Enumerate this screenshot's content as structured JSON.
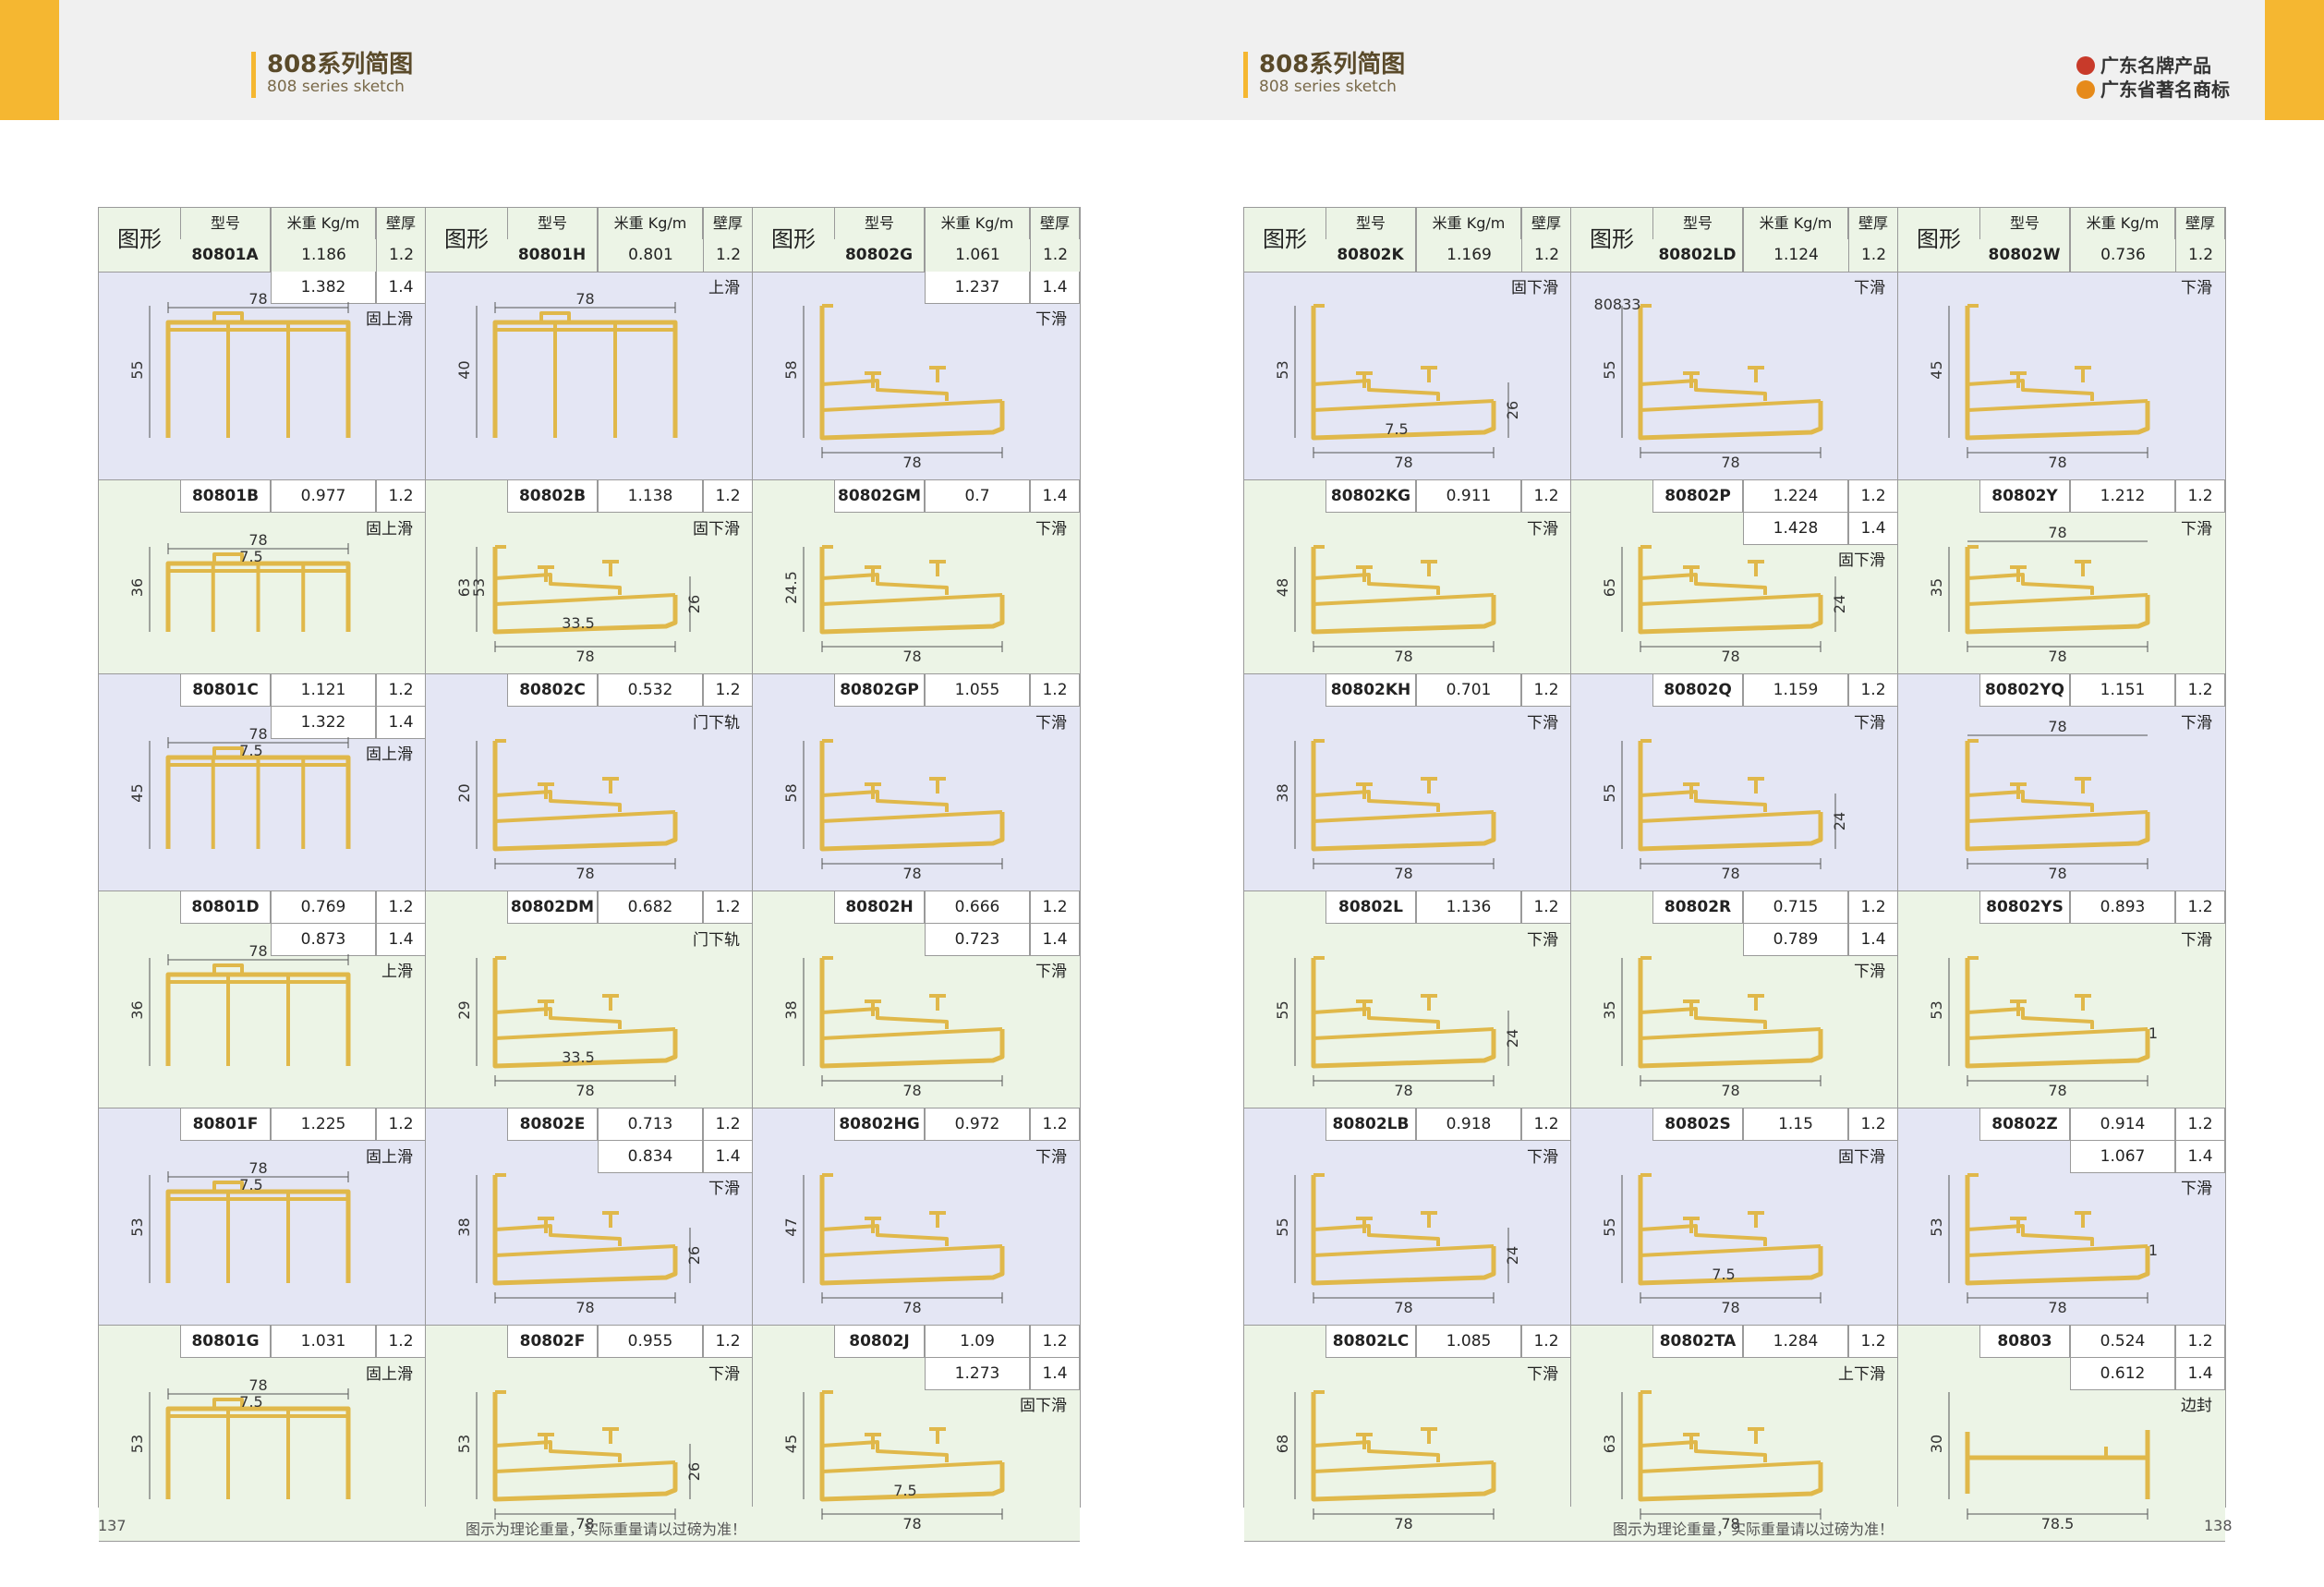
{
  "left": {
    "title": "808系列简图",
    "subtitle": "808 series sketch",
    "page": "137"
  },
  "right": {
    "title": "808系列简图",
    "subtitle": "808 series sketch",
    "page": "138"
  },
  "brand": {
    "line1": "广东名牌产品",
    "line2": "广东省著名商标"
  },
  "footer_note": "图示为理论重量，实际重量请以过磅为准！",
  "headers": {
    "shape": "图形",
    "model": "型号",
    "weight": "米重 Kg/m",
    "thickness": "壁厚"
  },
  "columns": [
    {
      "items": [
        {
          "model": "80801A",
          "rows": [
            [
              "1.186",
              "1.2"
            ],
            [
              "1.382",
              "1.4"
            ]
          ],
          "label": "固上滑",
          "dims": [
            "78",
            "55"
          ]
        },
        {
          "model": "80801B",
          "rows": [
            [
              "0.977",
              "1.2"
            ]
          ],
          "label": "固上滑",
          "dims": [
            "78",
            "7.5",
            "36"
          ]
        },
        {
          "model": "80801C",
          "rows": [
            [
              "1.121",
              "1.2"
            ],
            [
              "1.322",
              "1.4"
            ]
          ],
          "label": "固上滑",
          "dims": [
            "78",
            "7.5",
            "45"
          ]
        },
        {
          "model": "80801D",
          "rows": [
            [
              "0.769",
              "1.2"
            ],
            [
              "0.873",
              "1.4"
            ]
          ],
          "label": "上滑",
          "dims": [
            "36",
            "78"
          ]
        },
        {
          "model": "80801F",
          "rows": [
            [
              "1.225",
              "1.2"
            ]
          ],
          "label": "固上滑",
          "dims": [
            "7.5",
            "53",
            "78"
          ]
        },
        {
          "model": "80801G",
          "rows": [
            [
              "1.031",
              "1.2"
            ]
          ],
          "label": "固上滑",
          "dims": [
            "7.5",
            "53",
            "78"
          ]
        }
      ]
    },
    {
      "items": [
        {
          "model": "80801H",
          "rows": [
            [
              "0.801",
              "1.2"
            ]
          ],
          "label": "上滑",
          "dims": [
            "78",
            "40"
          ]
        },
        {
          "model": "80802B",
          "rows": [
            [
              "1.138",
              "1.2"
            ]
          ],
          "label": "固下滑",
          "dims": [
            "33.5",
            "63",
            "53",
            "26",
            "78"
          ]
        },
        {
          "model": "80802C",
          "rows": [
            [
              "0.532",
              "1.2"
            ]
          ],
          "label": "门下轨",
          "dims": [
            "78",
            "20"
          ]
        },
        {
          "model": "80802DM",
          "rows": [
            [
              "0.682",
              "1.2"
            ]
          ],
          "label": "门下轨",
          "dims": [
            "33.5",
            "29",
            "78"
          ]
        },
        {
          "model": "80802E",
          "rows": [
            [
              "0.713",
              "1.2"
            ],
            [
              "0.834",
              "1.4"
            ]
          ],
          "label": "下滑",
          "dims": [
            "78",
            "38",
            "26"
          ]
        },
        {
          "model": "80802F",
          "rows": [
            [
              "0.955",
              "1.2"
            ]
          ],
          "label": "下滑",
          "dims": [
            "53",
            "26",
            "78"
          ]
        }
      ]
    },
    {
      "items": [
        {
          "model": "80802G",
          "rows": [
            [
              "1.061",
              "1.2"
            ],
            [
              "1.237",
              "1.4"
            ]
          ],
          "label": "下滑",
          "dims": [
            "58",
            "78"
          ]
        },
        {
          "model": "80802GM",
          "rows": [
            [
              "0.7",
              "1.4"
            ]
          ],
          "label": "下滑",
          "dims": [
            "24.5",
            "78"
          ]
        },
        {
          "model": "80802GP",
          "rows": [
            [
              "1.055",
              "1.2"
            ]
          ],
          "label": "下滑",
          "dims": [
            "58",
            "78"
          ]
        },
        {
          "model": "80802H",
          "rows": [
            [
              "0.666",
              "1.2"
            ],
            [
              "0.723",
              "1.4"
            ]
          ],
          "label": "下滑",
          "dims": [
            "38",
            "78"
          ]
        },
        {
          "model": "80802HG",
          "rows": [
            [
              "0.972",
              "1.2"
            ]
          ],
          "label": "下滑",
          "dims": [
            "47",
            "78"
          ]
        },
        {
          "model": "80802J",
          "rows": [
            [
              "1.09",
              "1.2"
            ],
            [
              "1.273",
              "1.4"
            ]
          ],
          "label": "固下滑",
          "dims": [
            "45",
            "7.5",
            "78"
          ]
        }
      ]
    },
    {
      "items": [
        {
          "model": "80802K",
          "rows": [
            [
              "1.169",
              "1.2"
            ]
          ],
          "label": "固下滑",
          "dims": [
            "53",
            "26",
            "7.5",
            "78"
          ]
        },
        {
          "model": "80802KG",
          "rows": [
            [
              "0.911",
              "1.2"
            ]
          ],
          "label": "下滑",
          "dims": [
            "48",
            "78"
          ]
        },
        {
          "model": "80802KH",
          "rows": [
            [
              "0.701",
              "1.2"
            ]
          ],
          "label": "下滑",
          "dims": [
            "38",
            "78"
          ]
        },
        {
          "model": "80802L",
          "rows": [
            [
              "1.136",
              "1.2"
            ]
          ],
          "label": "下滑",
          "dims": [
            "55",
            "24",
            "78"
          ]
        },
        {
          "model": "80802LB",
          "rows": [
            [
              "0.918",
              "1.2"
            ]
          ],
          "label": "下滑",
          "dims": [
            "55",
            "24",
            "78"
          ]
        },
        {
          "model": "80802LC",
          "rows": [
            [
              "1.085",
              "1.2"
            ]
          ],
          "label": "下滑",
          "dims": [
            "68",
            "78"
          ]
        }
      ]
    },
    {
      "items": [
        {
          "model": "80802LD",
          "rows": [
            [
              "1.124",
              "1.2"
            ]
          ],
          "label": "下滑",
          "dims": [
            "80833",
            "55",
            "78"
          ]
        },
        {
          "model": "80802P",
          "rows": [
            [
              "1.224",
              "1.2"
            ],
            [
              "1.428",
              "1.4"
            ]
          ],
          "label": "固下滑",
          "dims": [
            "65",
            "24",
            "78"
          ]
        },
        {
          "model": "80802Q",
          "rows": [
            [
              "1.159",
              "1.2"
            ]
          ],
          "label": "下滑",
          "dims": [
            "55",
            "24",
            "78"
          ]
        },
        {
          "model": "80802R",
          "rows": [
            [
              "0.715",
              "1.2"
            ],
            [
              "0.789",
              "1.4"
            ]
          ],
          "label": "下滑",
          "dims": [
            "35",
            "78"
          ]
        },
        {
          "model": "80802S",
          "rows": [
            [
              "1.15",
              "1.2"
            ]
          ],
          "label": "固下滑",
          "dims": [
            "55",
            "7.5",
            "78"
          ]
        },
        {
          "model": "80802TA",
          "rows": [
            [
              "1.284",
              "1.2"
            ]
          ],
          "label": "上下滑",
          "dims": [
            "63",
            "78"
          ]
        }
      ]
    },
    {
      "items": [
        {
          "model": "80802W",
          "rows": [
            [
              "0.736",
              "1.2"
            ]
          ],
          "label": "下滑",
          "dims": [
            "78",
            "45"
          ]
        },
        {
          "model": "80802Y",
          "rows": [
            [
              "1.212",
              "1.2"
            ]
          ],
          "label": "下滑",
          "dims": [
            "78",
            "35",
            "78"
          ]
        },
        {
          "model": "80802YQ",
          "rows": [
            [
              "1.151",
              "1.2"
            ]
          ],
          "label": "下滑",
          "dims": [
            "78",
            "78"
          ]
        },
        {
          "model": "80802YS",
          "rows": [
            [
              "0.893",
              "1.2"
            ]
          ],
          "label": "下滑",
          "dims": [
            "53",
            "1",
            "78"
          ]
        },
        {
          "model": "80802Z",
          "rows": [
            [
              "0.914",
              "1.2"
            ],
            [
              "1.067",
              "1.4"
            ]
          ],
          "label": "下滑",
          "dims": [
            "53",
            "1",
            "78"
          ]
        },
        {
          "model": "80803",
          "rows": [
            [
              "0.524",
              "1.2"
            ],
            [
              "0.612",
              "1.4"
            ]
          ],
          "label": "边封",
          "dims": [
            "78.5",
            "30"
          ]
        }
      ]
    }
  ],
  "colors": {
    "accent": "#f5b731",
    "profile": "#e0b84a",
    "green": "#ecf4e6",
    "blue": "#e4e6f4"
  }
}
